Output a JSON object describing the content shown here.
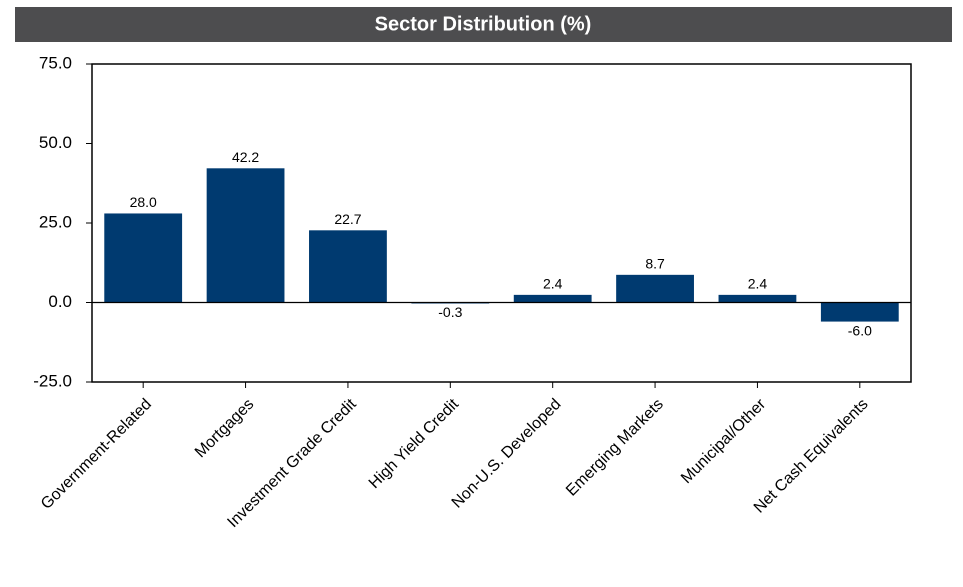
{
  "chart_data": {
    "type": "bar",
    "title": "Sector Distribution (%)",
    "categories": [
      "Government-Related",
      "Mortgages",
      "Investment Grade Credit",
      "High Yield Credit",
      "Non-U.S. Developed",
      "Emerging Markets",
      "Municipal/Other",
      "Net Cash Equivalents"
    ],
    "values": [
      28.0,
      42.2,
      22.7,
      -0.3,
      2.4,
      8.7,
      2.4,
      -6.0
    ],
    "value_labels": [
      "28.0",
      "42.2",
      "22.7",
      "-0.3",
      "2.4",
      "8.7",
      "2.4",
      "-6.0"
    ],
    "color": "#003a70",
    "ylim": [
      -25,
      75
    ],
    "yticks": [
      {
        "value": -25,
        "label": "-25.0"
      },
      {
        "value": 0,
        "label": "0.0"
      },
      {
        "value": 25,
        "label": "25.0"
      },
      {
        "value": 50,
        "label": "50.0"
      },
      {
        "value": 75,
        "label": "75.0"
      }
    ],
    "grid": false
  }
}
